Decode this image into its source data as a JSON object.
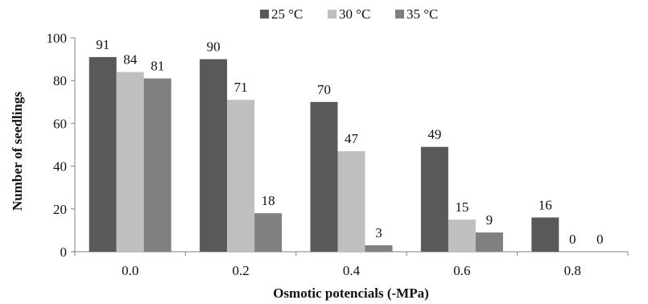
{
  "chart_data": {
    "type": "bar",
    "title": "",
    "xlabel": "Osmotic potencials (-MPa)",
    "ylabel": "Number of seedlings",
    "categories": [
      "0.0",
      "0.2",
      "0.4",
      "0.6",
      "0.8"
    ],
    "series": [
      {
        "name": "25 °C",
        "color": "#595959",
        "values": [
          91,
          90,
          70,
          49,
          16
        ]
      },
      {
        "name": "30 °C",
        "color": "#bfbfbf",
        "values": [
          84,
          71,
          47,
          15,
          0
        ]
      },
      {
        "name": "35 °C",
        "color": "#808080",
        "values": [
          81,
          18,
          3,
          9,
          0
        ]
      }
    ],
    "ylim": [
      0,
      100
    ],
    "yticks": [
      0,
      20,
      40,
      60,
      80,
      100
    ],
    "grid": false,
    "legend": "top",
    "data_labels": true
  }
}
